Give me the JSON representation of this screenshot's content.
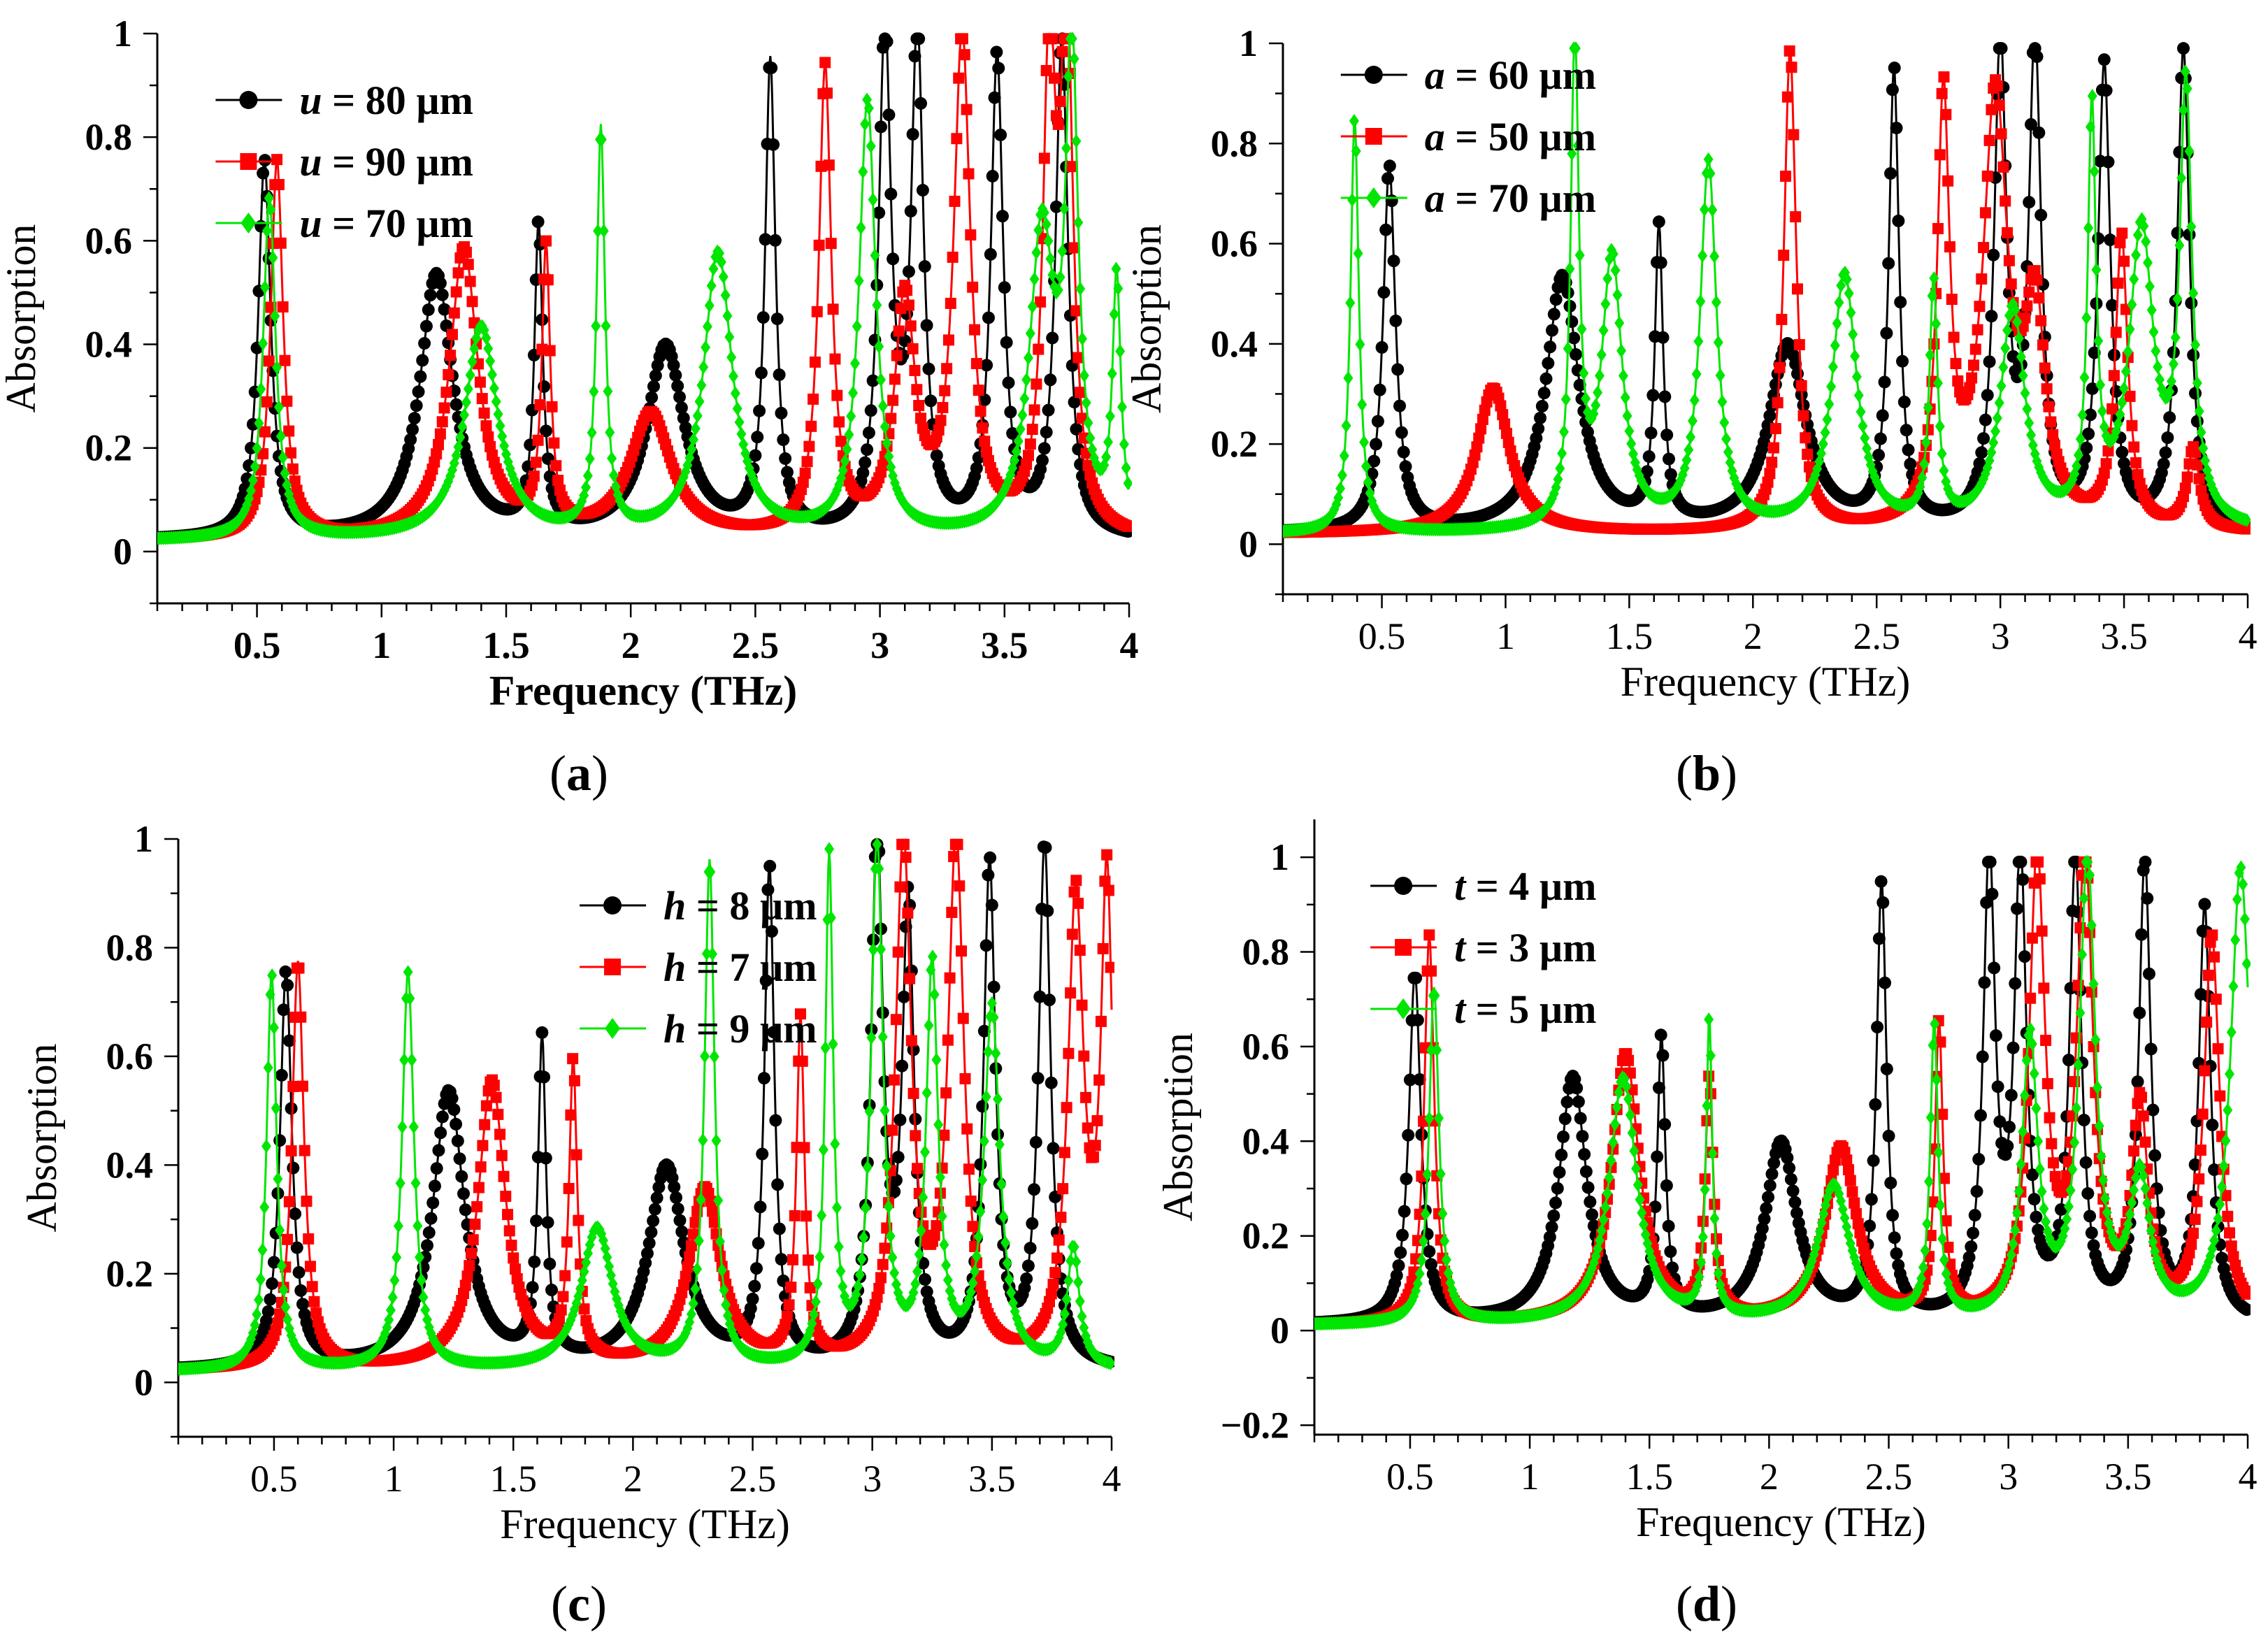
{
  "colors": {
    "series1": "#000000",
    "series2": "#ff0000",
    "series3": "#00e600"
  },
  "chart_data": [
    {
      "type": "line",
      "panel_label": "a",
      "xlabel": "Frequency (THz)",
      "ylabel": "Absorption",
      "xlabel_bold": true,
      "legend_bold": true,
      "xlim": [
        0.1,
        4.0
      ],
      "ylim": [
        -0.1,
        1.0
      ],
      "xticks": [
        "0.5",
        "1",
        "1.5",
        "2",
        "2.5",
        "3",
        "3.5",
        "4"
      ],
      "yticks": [
        "0",
        "0.2",
        "0.4",
        "0.6",
        "0.8",
        "1"
      ],
      "legend_position": "top-left",
      "series": [
        {
          "name_var": "u",
          "name_rest": " = 80 µm",
          "color": "#000000",
          "marker": "circle",
          "baseline": 0.02,
          "peaks": [
            [
              0.53,
              0.75,
              0.03
            ],
            [
              1.22,
              0.53,
              0.08
            ],
            [
              1.63,
              0.61,
              0.02
            ],
            [
              2.14,
              0.39,
              0.09
            ],
            [
              2.56,
              0.93,
              0.025
            ],
            [
              3.02,
              0.98,
              0.03
            ],
            [
              3.15,
              0.98,
              0.03
            ],
            [
              3.47,
              0.94,
              0.03
            ],
            [
              3.73,
              0.98,
              0.03
            ]
          ]
        },
        {
          "name_var": "u",
          "name_rest": " = 90 µm",
          "color": "#ff0000",
          "marker": "square",
          "baseline": 0.02,
          "peaks": [
            [
              0.58,
              0.75,
              0.03
            ],
            [
              1.33,
              0.58,
              0.07
            ],
            [
              1.66,
              0.56,
              0.02
            ],
            [
              2.08,
              0.26,
              0.1
            ],
            [
              2.78,
              0.92,
              0.03
            ],
            [
              3.1,
              0.47,
              0.05
            ],
            [
              3.33,
              0.98,
              0.04
            ],
            [
              3.68,
              0.92,
              0.03
            ],
            [
              3.75,
              0.98,
              0.03
            ]
          ]
        },
        {
          "name_var": "u",
          "name_rest": " = 70 µm",
          "color": "#00e600",
          "marker": "diamond",
          "baseline": 0.02,
          "peaks": [
            [
              0.55,
              0.68,
              0.03
            ],
            [
              1.4,
              0.43,
              0.08
            ],
            [
              1.88,
              0.8,
              0.02
            ],
            [
              2.35,
              0.57,
              0.07
            ],
            [
              2.95,
              0.86,
              0.04
            ],
            [
              3.65,
              0.6,
              0.06
            ],
            [
              3.77,
              0.93,
              0.03
            ],
            [
              3.95,
              0.5,
              0.02
            ]
          ]
        }
      ]
    },
    {
      "type": "line",
      "panel_label": "b",
      "xlabel": "Frequency (THz)",
      "ylabel": "Absorption",
      "xlabel_bold": false,
      "legend_bold": true,
      "xlim": [
        0.1,
        4.0
      ],
      "ylim": [
        -0.1,
        1.0
      ],
      "xticks": [
        "0.5",
        "1",
        "1.5",
        "2",
        "2.5",
        "3",
        "3.5",
        "4"
      ],
      "yticks": [
        "0",
        "0.2",
        "0.4",
        "0.6",
        "0.8",
        "1"
      ],
      "legend_position": "top-left",
      "series": [
        {
          "name_var": "a",
          "name_rest": " = 60 µm",
          "color": "#000000",
          "marker": "circle",
          "baseline": 0.02,
          "peaks": [
            [
              0.53,
              0.75,
              0.03
            ],
            [
              1.23,
              0.53,
              0.08
            ],
            [
              1.62,
              0.61,
              0.02
            ],
            [
              2.14,
              0.39,
              0.09
            ],
            [
              2.57,
              0.93,
              0.025
            ],
            [
              3.0,
              0.98,
              0.03
            ],
            [
              3.14,
              0.98,
              0.03
            ],
            [
              3.42,
              0.94,
              0.03
            ],
            [
              3.74,
              0.98,
              0.03
            ]
          ]
        },
        {
          "name_var": "a",
          "name_rest": " = 50 µm",
          "color": "#ff0000",
          "marker": "square",
          "baseline": 0.02,
          "peaks": [
            [
              0.95,
              0.31,
              0.08
            ],
            [
              2.15,
              0.98,
              0.03
            ],
            [
              2.77,
              0.86,
              0.03
            ],
            [
              2.98,
              0.87,
              0.06
            ],
            [
              3.14,
              0.43,
              0.05
            ],
            [
              3.49,
              0.6,
              0.03
            ],
            [
              3.78,
              0.18,
              0.03
            ]
          ]
        },
        {
          "name_var": "a",
          "name_rest": " = 70 µm",
          "color": "#00e600",
          "marker": "diamond",
          "baseline": 0.02,
          "peaks": [
            [
              0.39,
              0.85,
              0.02
            ],
            [
              1.28,
              0.98,
              0.02
            ],
            [
              1.43,
              0.56,
              0.05
            ],
            [
              1.82,
              0.75,
              0.04
            ],
            [
              2.37,
              0.53,
              0.06
            ],
            [
              2.73,
              0.5,
              0.02
            ],
            [
              3.05,
              0.46,
              0.06
            ],
            [
              3.37,
              0.83,
              0.02
            ],
            [
              3.57,
              0.61,
              0.06
            ],
            [
              3.75,
              0.88,
              0.03
            ]
          ]
        }
      ]
    },
    {
      "type": "line",
      "panel_label": "c",
      "xlabel": "Frequency (THz)",
      "ylabel": "Absorption",
      "xlabel_bold": false,
      "legend_bold": true,
      "xlim": [
        0.1,
        4.0
      ],
      "ylim": [
        -0.1,
        1.0
      ],
      "xticks": [
        "0.5",
        "1",
        "1.5",
        "2",
        "2.5",
        "3",
        "3.5",
        "4"
      ],
      "yticks": [
        "0",
        "0.2",
        "0.4",
        "0.6",
        "0.8",
        "1"
      ],
      "legend_position": "top-right",
      "series": [
        {
          "name_var": "h",
          "name_rest": " = 8 µm",
          "color": "#000000",
          "marker": "circle",
          "baseline": 0.02,
          "peaks": [
            [
              0.55,
              0.75,
              0.03
            ],
            [
              1.23,
              0.53,
              0.08
            ],
            [
              1.62,
              0.61,
              0.02
            ],
            [
              2.14,
              0.39,
              0.09
            ],
            [
              2.57,
              0.93,
              0.025
            ],
            [
              3.02,
              0.98,
              0.03
            ],
            [
              3.15,
              0.85,
              0.03
            ],
            [
              3.49,
              0.94,
              0.03
            ],
            [
              3.72,
              0.98,
              0.03
            ]
          ]
        },
        {
          "name_var": "h",
          "name_rest": " = 7 µm",
          "color": "#ff0000",
          "marker": "square",
          "baseline": 0.02,
          "peaks": [
            [
              0.6,
              0.77,
              0.03
            ],
            [
              1.41,
              0.55,
              0.07
            ],
            [
              1.75,
              0.57,
              0.02
            ],
            [
              2.3,
              0.35,
              0.08
            ],
            [
              2.7,
              0.65,
              0.02
            ],
            [
              3.13,
              0.98,
              0.04
            ],
            [
              3.35,
              0.98,
              0.04
            ],
            [
              3.85,
              0.87,
              0.04
            ],
            [
              3.98,
              0.89,
              0.03
            ]
          ]
        },
        {
          "name_var": "h",
          "name_rest": " = 9 µm",
          "color": "#00e600",
          "marker": "diamond",
          "baseline": 0.02,
          "peaks": [
            [
              0.49,
              0.75,
              0.025
            ],
            [
              1.06,
              0.75,
              0.03
            ],
            [
              1.85,
              0.28,
              0.08
            ],
            [
              2.32,
              0.95,
              0.025
            ],
            [
              2.82,
              0.95,
              0.02
            ],
            [
              3.02,
              0.98,
              0.03
            ],
            [
              3.25,
              0.75,
              0.03
            ],
            [
              3.5,
              0.68,
              0.04
            ],
            [
              3.84,
              0.24,
              0.03
            ]
          ]
        }
      ]
    },
    {
      "type": "line",
      "panel_label": "d",
      "xlabel": "Frequency (THz)",
      "ylabel": "Absorption",
      "xlabel_bold": false,
      "legend_bold": true,
      "xlim": [
        0.1,
        4.0
      ],
      "ylim": [
        -0.22,
        1.08
      ],
      "xticks": [
        "0.5",
        "1",
        "1.5",
        "2",
        "2.5",
        "3",
        "3.5",
        "4"
      ],
      "yticks": [
        "−0.2",
        "0",
        "0.2",
        "0.4",
        "0.6",
        "0.8",
        "1"
      ],
      "legend_position": "top-left",
      "series": [
        {
          "name_var": "t",
          "name_rest": " = 4 µm",
          "color": "#000000",
          "marker": "circle",
          "baseline": 0.01,
          "peaks": [
            [
              0.52,
              0.75,
              0.03
            ],
            [
              1.18,
              0.53,
              0.07
            ],
            [
              1.55,
              0.6,
              0.02
            ],
            [
              2.05,
              0.39,
              0.08
            ],
            [
              2.47,
              0.93,
              0.025
            ],
            [
              2.92,
              0.98,
              0.03
            ],
            [
              3.05,
              0.98,
              0.03
            ],
            [
              3.28,
              0.98,
              0.03
            ],
            [
              3.57,
              0.98,
              0.03
            ],
            [
              3.82,
              0.88,
              0.03
            ]
          ]
        },
        {
          "name_var": "t",
          "name_rest": " = 3 µm",
          "color": "#ff0000",
          "marker": "square",
          "baseline": 0.01,
          "peaks": [
            [
              0.58,
              0.83,
              0.025
            ],
            [
              1.4,
              0.58,
              0.07
            ],
            [
              1.75,
              0.51,
              0.02
            ],
            [
              2.3,
              0.38,
              0.08
            ],
            [
              2.71,
              0.63,
              0.02
            ],
            [
              3.12,
              0.98,
              0.04
            ],
            [
              3.32,
              0.98,
              0.04
            ],
            [
              3.55,
              0.45,
              0.04
            ],
            [
              3.85,
              0.82,
              0.04
            ]
          ]
        },
        {
          "name_var": "t",
          "name_rest": " = 5 µm",
          "color": "#00e600",
          "marker": "diamond",
          "baseline": 0.01,
          "peaks": [
            [
              0.6,
              0.72,
              0.025
            ],
            [
              1.39,
              0.53,
              0.07
            ],
            [
              1.75,
              0.64,
              0.015
            ],
            [
              2.27,
              0.3,
              0.08
            ],
            [
              2.69,
              0.63,
              0.02
            ],
            [
              3.09,
              0.6,
              0.04
            ],
            [
              3.33,
              0.98,
              0.04
            ],
            [
              3.55,
              0.3,
              0.05
            ],
            [
              3.97,
              0.97,
              0.05
            ]
          ]
        }
      ]
    }
  ]
}
